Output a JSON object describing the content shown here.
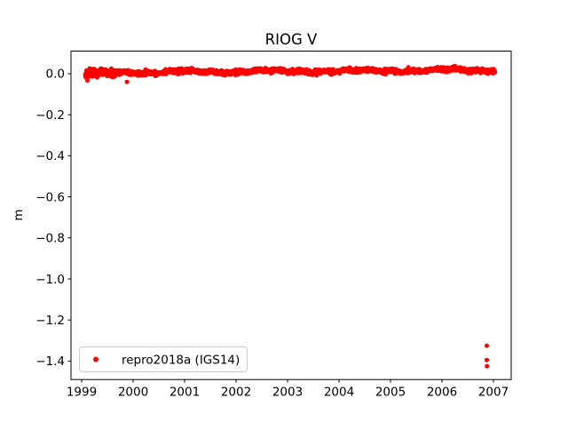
{
  "chart_data": {
    "type": "scatter",
    "title": "RIOG V",
    "xlabel": "",
    "ylabel": "m",
    "xlim": [
      1998.793,
      2007.345
    ],
    "ylim": [
      -1.49,
      0.11
    ],
    "xticks": [
      1999,
      2000,
      2001,
      2002,
      2003,
      2004,
      2005,
      2006,
      2007
    ],
    "yticks": [
      {
        "v": 0.0,
        "label": "0.0"
      },
      {
        "v": -0.2,
        "label": "−0.2"
      },
      {
        "v": -0.4,
        "label": "−0.4"
      },
      {
        "v": -0.6,
        "label": "−0.6"
      },
      {
        "v": -0.8,
        "label": "−0.8"
      },
      {
        "v": -1.0,
        "label": "−1.0"
      },
      {
        "v": -1.2,
        "label": "−1.2"
      },
      {
        "v": -1.4,
        "label": "−1.4"
      }
    ],
    "grid": false,
    "background": "#ffffff",
    "axis_color": "#000000",
    "legend": {
      "label": "repro2018a (IGS14)",
      "position": "lower left",
      "frame_color": "#cccccc",
      "frame_fill": "#ffffff",
      "marker_color": "#ff0000"
    },
    "series": [
      {
        "name": "repro2018a (IGS14)",
        "color": "#ff0000",
        "marker": "dot",
        "marker_radius_px": 2.5,
        "band": {
          "description": "dense daily vertical-position time series hugging 0 m",
          "t_start": 1999.07,
          "t_end": 2007.03,
          "n_points": 1700,
          "mean_start_m": 0.005,
          "mean_end_m": 0.018,
          "noise_sd_m": 0.0055,
          "wobble": [
            {
              "amp": 0.0045,
              "period": 1.7,
              "phase": 0.5
            },
            {
              "amp": 0.003,
              "period": 0.43,
              "phase": 2.0
            }
          ],
          "early_until": 1999.65,
          "early_noise_mult": 1.9,
          "early_offset_m": -0.006,
          "clip_m": 0.05,
          "seed": 42
        },
        "extra_points": [
          {
            "t": 1999.88,
            "v": -0.04
          },
          {
            "t": 2006.87,
            "v": -1.325
          },
          {
            "t": 2006.87,
            "v": -1.395
          },
          {
            "t": 2006.875,
            "v": -1.425
          }
        ]
      }
    ]
  }
}
